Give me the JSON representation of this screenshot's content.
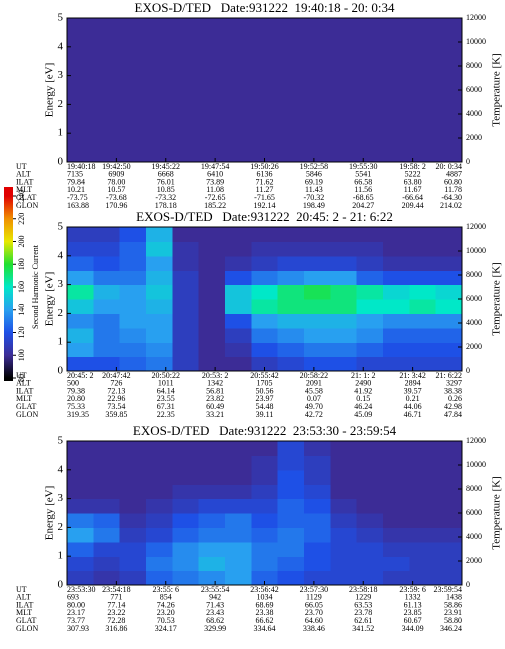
{
  "chart_data": [
    {
      "type": "heatmap",
      "title": "EXOS-D/TED   Date:931222  19:40:18 - 20: 0:34",
      "ylabel": "Energy [eV]",
      "ylim": [
        0,
        5
      ],
      "yticks": [
        0,
        1,
        2,
        3,
        4,
        5
      ],
      "y2label": "Temperature [K]",
      "y2lim": [
        0,
        12000
      ],
      "y2ticks": [
        0,
        2000,
        4000,
        6000,
        8000,
        10000,
        12000
      ],
      "values": [
        [
          100,
          100,
          100,
          100,
          100,
          100,
          100,
          100,
          100,
          100,
          100,
          100,
          100,
          100,
          100
        ],
        [
          100,
          100,
          100,
          100,
          100,
          100,
          100,
          100,
          100,
          100,
          100,
          100,
          100,
          100,
          100
        ],
        [
          100,
          100,
          100,
          100,
          100,
          100,
          100,
          100,
          100,
          100,
          100,
          100,
          100,
          100,
          100
        ],
        [
          100,
          100,
          100,
          100,
          100,
          100,
          100,
          100,
          100,
          100,
          100,
          100,
          100,
          100,
          100
        ],
        [
          100,
          100,
          100,
          100,
          100,
          100,
          100,
          100,
          100,
          100,
          100,
          100,
          100,
          100,
          100
        ],
        [
          100,
          100,
          100,
          100,
          100,
          100,
          100,
          100,
          100,
          100,
          100,
          100,
          100,
          100,
          100
        ],
        [
          100,
          100,
          100,
          100,
          100,
          100,
          100,
          100,
          100,
          100,
          100,
          100,
          100,
          100,
          100
        ],
        [
          100,
          100,
          100,
          100,
          100,
          100,
          100,
          100,
          100,
          100,
          100,
          100,
          100,
          100,
          100
        ],
        [
          100,
          100,
          100,
          100,
          100,
          100,
          100,
          100,
          100,
          100,
          100,
          100,
          100,
          100,
          100
        ],
        [
          100,
          100,
          100,
          100,
          100,
          100,
          100,
          100,
          100,
          100,
          100,
          100,
          100,
          100,
          100
        ]
      ],
      "row_labels": [
        "UT",
        "ALT",
        "ILAT",
        "MLT",
        "GLAT",
        "GLON"
      ],
      "rows": [
        [
          "19:40:18",
          "19:42:50",
          "19:45:22",
          "19:47:54",
          "19:50:26",
          "19:52:58",
          "19:55:30",
          "19:58: 2",
          "20: 0:34"
        ],
        [
          "7135",
          "6909",
          "6668",
          "6410",
          "6136",
          "5846",
          "5541",
          "5222",
          "4887"
        ],
        [
          "79.84",
          "78.00",
          "76.01",
          "73.89",
          "71.62",
          "69.19",
          "66.58",
          "63.80",
          "60.80"
        ],
        [
          "10.21",
          "10.57",
          "10.85",
          "11.08",
          "11.27",
          "11.43",
          "11.56",
          "11.67",
          "11.78"
        ],
        [
          "-73.75",
          "-73.68",
          "-73.32",
          "-72.65",
          "-71.65",
          "-70.32",
          "-68.65",
          "-66.64",
          "-64.30"
        ],
        [
          "163.88",
          "170.96",
          "178.18",
          "185.22",
          "192.14",
          "198.49",
          "204.27",
          "209.44",
          "214.02"
        ]
      ]
    },
    {
      "type": "heatmap",
      "title": "EXOS-D/TED   Date:931222  20:45: 2 - 21: 6:22",
      "ylabel": "Energy [eV]",
      "ylim": [
        0,
        5
      ],
      "yticks": [
        0,
        1,
        2,
        3,
        4,
        5
      ],
      "y2label": "Temperature [K]",
      "y2lim": [
        0,
        12000
      ],
      "y2ticks": [
        0,
        2000,
        4000,
        6000,
        8000,
        10000,
        12000
      ],
      "values": [
        [
          120,
          120,
          125,
          130,
          110,
          100,
          100,
          110,
          115,
          120,
          120,
          115,
          115,
          115,
          115
        ],
        [
          140,
          130,
          130,
          135,
          110,
          100,
          105,
          120,
          125,
          130,
          130,
          125,
          120,
          120,
          120
        ],
        [
          145,
          130,
          135,
          140,
          110,
          100,
          110,
          130,
          135,
          140,
          140,
          135,
          125,
          125,
          125
        ],
        [
          135,
          130,
          140,
          140,
          110,
          100,
          120,
          140,
          145,
          145,
          145,
          140,
          135,
          135,
          135
        ],
        [
          150,
          140,
          140,
          145,
          110,
          100,
          150,
          165,
          170,
          170,
          170,
          160,
          160,
          165,
          160
        ],
        [
          165,
          145,
          140,
          150,
          110,
          100,
          150,
          160,
          170,
          175,
          170,
          165,
          155,
          160,
          155
        ],
        [
          140,
          130,
          130,
          145,
          110,
          100,
          120,
          130,
          135,
          140,
          140,
          125,
          120,
          120,
          120
        ],
        [
          125,
          120,
          125,
          140,
          105,
          100,
          105,
          110,
          115,
          115,
          115,
          110,
          105,
          105,
          105
        ],
        [
          115,
          115,
          125,
          150,
          105,
          100,
          100,
          105,
          105,
          105,
          105,
          105,
          100,
          100,
          100
        ],
        [
          110,
          110,
          120,
          145,
          100,
          100,
          100,
          100,
          100,
          100,
          100,
          100,
          100,
          100,
          100
        ]
      ],
      "colorbar": {
        "label": "Second Harmonic Current",
        "ticks": [
          80,
          100,
          120,
          140,
          160,
          180,
          200,
          220,
          240
        ],
        "colors": [
          "#000000",
          "#3c2c96",
          "#1e50e6",
          "#28a0f0",
          "#00e8c8",
          "#20e030",
          "#e8e800",
          "#f09000",
          "#e00000"
        ]
      },
      "row_labels": [
        "UT",
        "ALT",
        "ILAT",
        "MLT",
        "GLAT",
        "GLON"
      ],
      "rows": [
        [
          "20:45: 2",
          "20:47:42",
          "20:50:22",
          "20:53: 2",
          "20:55:42",
          "20:58:22",
          "21: 1: 2",
          "21: 3:42",
          "21: 6:22"
        ],
        [
          "500",
          "726",
          "1011",
          "1342",
          "1705",
          "2091",
          "2490",
          "2894",
          "3297"
        ],
        [
          "79.38",
          "72.13",
          "64.14",
          "56.81",
          "50.56",
          "45.58",
          "41.92",
          "39.57",
          "38.38"
        ],
        [
          "20.80",
          "22.96",
          "23.55",
          "23.82",
          "23.97",
          "0.07",
          "0.15",
          "0.21",
          "0.26"
        ],
        [
          "75.33",
          "73.54",
          "67.31",
          "60.49",
          "54.48",
          "49.70",
          "46.24",
          "44.06",
          "42.98"
        ],
        [
          "319.35",
          "359.85",
          "22.35",
          "33.21",
          "39.11",
          "42.72",
          "45.09",
          "46.71",
          "47.84"
        ]
      ]
    },
    {
      "type": "heatmap",
      "title": "EXOS-D/TED   Date:931222  23:53:30 - 23:59:54",
      "ylabel": "Energy [eV]",
      "ylim": [
        0,
        5
      ],
      "yticks": [
        0,
        1,
        2,
        3,
        4,
        5
      ],
      "y2label": "Temperature [K]",
      "y2lim": [
        0,
        12000
      ],
      "y2ticks": [
        0,
        2000,
        4000,
        6000,
        8000,
        10000,
        12000
      ],
      "values": [
        [
          110,
          105,
          110,
          125,
          130,
          135,
          140,
          125,
          120,
          115,
          115,
          115,
          110,
          110,
          110
        ],
        [
          115,
          110,
          115,
          130,
          135,
          145,
          140,
          130,
          125,
          120,
          115,
          115,
          115,
          110,
          110
        ],
        [
          125,
          115,
          115,
          125,
          135,
          140,
          140,
          130,
          130,
          120,
          115,
          115,
          110,
          110,
          110
        ],
        [
          140,
          130,
          110,
          115,
          125,
          130,
          130,
          125,
          130,
          125,
          115,
          110,
          105,
          105,
          105
        ],
        [
          130,
          125,
          105,
          110,
          120,
          125,
          130,
          120,
          125,
          125,
          110,
          105,
          100,
          100,
          100
        ],
        [
          105,
          105,
          100,
          105,
          110,
          115,
          115,
          115,
          125,
          120,
          105,
          100,
          100,
          100,
          100
        ],
        [
          100,
          100,
          100,
          100,
          105,
          105,
          105,
          110,
          120,
          115,
          100,
          100,
          100,
          100,
          100
        ],
        [
          100,
          100,
          100,
          100,
          100,
          100,
          100,
          105,
          120,
          110,
          100,
          100,
          100,
          100,
          100
        ],
        [
          100,
          100,
          100,
          100,
          100,
          100,
          100,
          105,
          115,
          110,
          100,
          100,
          100,
          100,
          100
        ],
        [
          100,
          100,
          100,
          100,
          100,
          100,
          100,
          100,
          115,
          105,
          100,
          100,
          100,
          100,
          100
        ]
      ],
      "row_labels": [
        "UT",
        "ALT",
        "ILAT",
        "MLT",
        "GLAT",
        "GLON"
      ],
      "rows": [
        [
          "23:53:30",
          "23:54:18",
          "23:55: 6",
          "23:55:54",
          "23:56:42",
          "23:57:30",
          "23:58:18",
          "23:59: 6",
          "23:59:54"
        ],
        [
          "693",
          "771",
          "854",
          "942",
          "1034",
          "1129",
          "1229",
          "1332",
          "1438"
        ],
        [
          "80.00",
          "77.14",
          "74.26",
          "71.43",
          "68.69",
          "66.05",
          "63.53",
          "61.13",
          "58.86"
        ],
        [
          "23.17",
          "23.22",
          "23.20",
          "23.43",
          "23.38",
          "23.70",
          "23.78",
          "23.85",
          "23.91"
        ],
        [
          "73.77",
          "72.28",
          "70.53",
          "68.62",
          "66.62",
          "64.60",
          "62.61",
          "60.67",
          "58.80"
        ],
        [
          "307.93",
          "316.86",
          "324.17",
          "329.99",
          "334.64",
          "338.46",
          "341.52",
          "344.09",
          "346.24"
        ]
      ]
    }
  ]
}
